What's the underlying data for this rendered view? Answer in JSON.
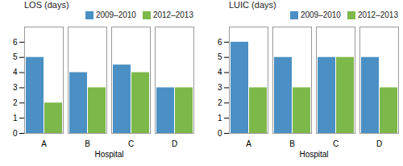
{
  "chart_data": [
    {
      "type": "bar",
      "title": "LOS (days)",
      "xlabel": "Hospital",
      "categories": [
        "A",
        "B",
        "C",
        "D"
      ],
      "series": [
        {
          "name": "2009–2010",
          "color": "#4a90c4",
          "values": [
            5,
            4,
            4.5,
            3
          ]
        },
        {
          "name": "2012–2013",
          "color": "#7db84a",
          "values": [
            2,
            3,
            4,
            3
          ]
        }
      ],
      "ylim": [
        0,
        7
      ],
      "yticks": [
        0,
        1,
        2,
        3,
        4,
        5,
        6
      ],
      "legend": "upper right"
    },
    {
      "type": "bar",
      "title": "LUIC (days)",
      "xlabel": "Hospital",
      "categories": [
        "A",
        "B",
        "C",
        "D"
      ],
      "series": [
        {
          "name": "2009–2010",
          "color": "#4a90c4",
          "values": [
            6,
            5,
            5,
            5
          ]
        },
        {
          "name": "2012–2013",
          "color": "#7db84a",
          "values": [
            3,
            3,
            5,
            3
          ]
        }
      ],
      "ylim": [
        0,
        7
      ],
      "yticks": [
        0,
        1,
        2,
        3,
        4,
        5,
        6
      ],
      "legend": "upper right"
    }
  ]
}
